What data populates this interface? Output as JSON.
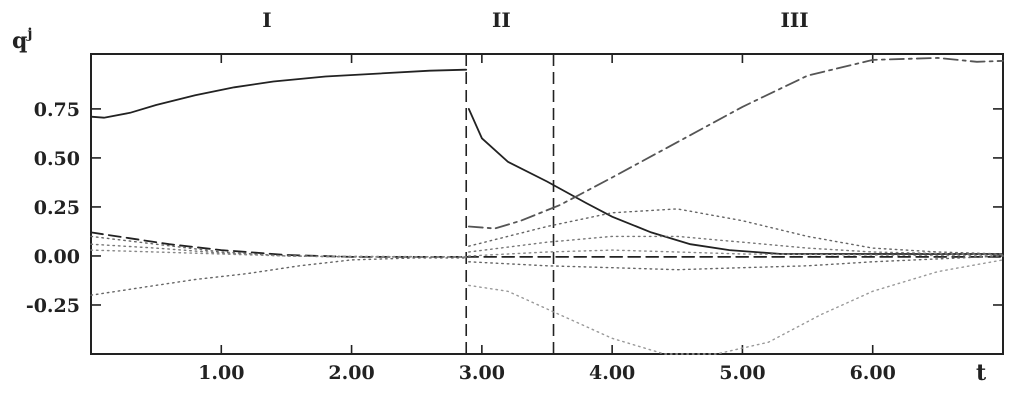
{
  "chart_data": {
    "type": "line",
    "title": "",
    "xlabel": "t",
    "ylabel": "q",
    "ylabel_sup": "j",
    "xlim": [
      0,
      7.0
    ],
    "ylim": [
      -0.5,
      1.03
    ],
    "xticks": [
      1.0,
      2.0,
      3.0,
      4.0,
      5.0,
      6.0
    ],
    "xtick_labels": [
      "1.00",
      "2.00",
      "3.00",
      "4.00",
      "5.00",
      "6.00"
    ],
    "yticks": [
      0.75,
      0.5,
      0.25,
      0.0,
      -0.25
    ],
    "ytick_labels": [
      "0.75",
      "0.50",
      "0.25",
      "0.00",
      "-0.25"
    ],
    "regions": [
      {
        "label": "I",
        "x": 1.35
      },
      {
        "label": "II",
        "x": 3.15
      },
      {
        "label": "III",
        "x": 5.4
      }
    ],
    "vlines": [
      2.88,
      3.55
    ],
    "grid": false,
    "series": [
      {
        "style": "solid",
        "color": "#222222",
        "segments": [
          [
            [
              0,
              0.71
            ],
            [
              0.1,
              0.705
            ],
            [
              0.3,
              0.73
            ],
            [
              0.5,
              0.77
            ],
            [
              0.8,
              0.82
            ],
            [
              1.1,
              0.86
            ],
            [
              1.4,
              0.89
            ],
            [
              1.8,
              0.915
            ],
            [
              2.2,
              0.93
            ],
            [
              2.6,
              0.945
            ],
            [
              2.88,
              0.95
            ]
          ],
          [
            [
              2.9,
              0.75
            ],
            [
              3.0,
              0.6
            ],
            [
              3.2,
              0.48
            ],
            [
              3.5,
              0.38
            ],
            [
              3.8,
              0.27
            ],
            [
              4.0,
              0.2
            ],
            [
              4.3,
              0.12
            ],
            [
              4.6,
              0.06
            ],
            [
              4.9,
              0.03
            ],
            [
              5.3,
              0.01
            ],
            [
              5.8,
              0.01
            ],
            [
              6.3,
              0.01
            ],
            [
              7.0,
              0.01
            ]
          ]
        ]
      },
      {
        "style": "dashed",
        "color": "#222222",
        "segments": [
          [
            [
              0,
              0.12
            ],
            [
              0.3,
              0.09
            ],
            [
              0.6,
              0.06
            ],
            [
              1.0,
              0.03
            ],
            [
              1.5,
              0.005
            ],
            [
              2.0,
              -0.005
            ],
            [
              2.5,
              -0.005
            ],
            [
              2.88,
              -0.005
            ]
          ],
          [
            [
              2.88,
              -0.005
            ],
            [
              4.0,
              -0.005
            ],
            [
              5.0,
              -0.005
            ],
            [
              6.0,
              -0.005
            ],
            [
              7.0,
              -0.005
            ]
          ]
        ]
      },
      {
        "style": "dashdot",
        "color": "#555555",
        "segments": [
          [
            [
              2.9,
              0.15
            ],
            [
              3.1,
              0.14
            ],
            [
              3.3,
              0.18
            ],
            [
              3.6,
              0.26
            ],
            [
              4.0,
              0.4
            ],
            [
              4.5,
              0.58
            ],
            [
              5.0,
              0.76
            ],
            [
              5.5,
              0.92
            ],
            [
              6.0,
              1.0
            ],
            [
              6.5,
              1.01
            ],
            [
              6.8,
              0.99
            ],
            [
              7.0,
              0.995
            ]
          ]
        ]
      },
      {
        "style": "dotted",
        "color": "#666666",
        "segments": [
          [
            [
              0,
              0.1
            ],
            [
              0.5,
              0.06
            ],
            [
              1.0,
              0.02
            ],
            [
              1.5,
              0.0
            ],
            [
              2.0,
              -0.005
            ],
            [
              2.88,
              -0.005
            ]
          ],
          [
            [
              2.9,
              0.05
            ],
            [
              3.5,
              0.15
            ],
            [
              4.0,
              0.22
            ],
            [
              4.5,
              0.24
            ],
            [
              5.0,
              0.18
            ],
            [
              5.5,
              0.1
            ],
            [
              6.0,
              0.04
            ],
            [
              6.5,
              0.02
            ],
            [
              7.0,
              0.01
            ]
          ]
        ]
      },
      {
        "style": "dotted",
        "color": "#777777",
        "segments": [
          [
            [
              0,
              0.06
            ],
            [
              0.5,
              0.04
            ],
            [
              1.0,
              0.015
            ],
            [
              1.5,
              0.0
            ],
            [
              2.0,
              -0.005
            ],
            [
              2.88,
              -0.005
            ]
          ],
          [
            [
              2.9,
              0.02
            ],
            [
              3.5,
              0.07
            ],
            [
              4.0,
              0.1
            ],
            [
              4.5,
              0.1
            ],
            [
              5.0,
              0.07
            ],
            [
              5.5,
              0.04
            ],
            [
              6.0,
              0.02
            ],
            [
              7.0,
              0.005
            ]
          ]
        ]
      },
      {
        "style": "dotted",
        "color": "#888888",
        "segments": [
          [
            [
              0,
              0.03
            ],
            [
              0.5,
              0.02
            ],
            [
              1.0,
              0.01
            ],
            [
              1.5,
              0.0
            ],
            [
              2.88,
              -0.005
            ]
          ],
          [
            [
              2.9,
              0.0
            ],
            [
              3.5,
              0.02
            ],
            [
              4.0,
              0.03
            ],
            [
              4.5,
              0.02
            ],
            [
              5.0,
              0.01
            ],
            [
              6.0,
              0.005
            ],
            [
              7.0,
              0.0
            ]
          ]
        ]
      },
      {
        "style": "dotted",
        "color": "#666666",
        "segments": [
          [
            [
              0,
              -0.2
            ],
            [
              0.4,
              -0.16
            ],
            [
              0.8,
              -0.12
            ],
            [
              1.2,
              -0.09
            ],
            [
              1.6,
              -0.05
            ],
            [
              2.0,
              -0.02
            ],
            [
              2.5,
              -0.01
            ],
            [
              2.88,
              -0.01
            ]
          ],
          [
            [
              2.9,
              -0.03
            ],
            [
              3.5,
              -0.05
            ],
            [
              4.0,
              -0.06
            ],
            [
              4.5,
              -0.07
            ],
            [
              5.0,
              -0.06
            ],
            [
              5.5,
              -0.05
            ],
            [
              6.0,
              -0.03
            ],
            [
              6.5,
              -0.015
            ],
            [
              7.0,
              0.0
            ]
          ]
        ]
      },
      {
        "style": "dotted",
        "color": "#999999",
        "segments": [
          [
            [
              2.9,
              -0.15
            ],
            [
              3.2,
              -0.18
            ],
            [
              3.6,
              -0.3
            ],
            [
              4.0,
              -0.42
            ],
            [
              4.4,
              -0.5
            ],
            [
              4.8,
              -0.5
            ],
            [
              5.2,
              -0.44
            ],
            [
              5.6,
              -0.3
            ],
            [
              6.0,
              -0.18
            ],
            [
              6.5,
              -0.08
            ],
            [
              7.0,
              -0.02
            ]
          ]
        ]
      }
    ]
  }
}
